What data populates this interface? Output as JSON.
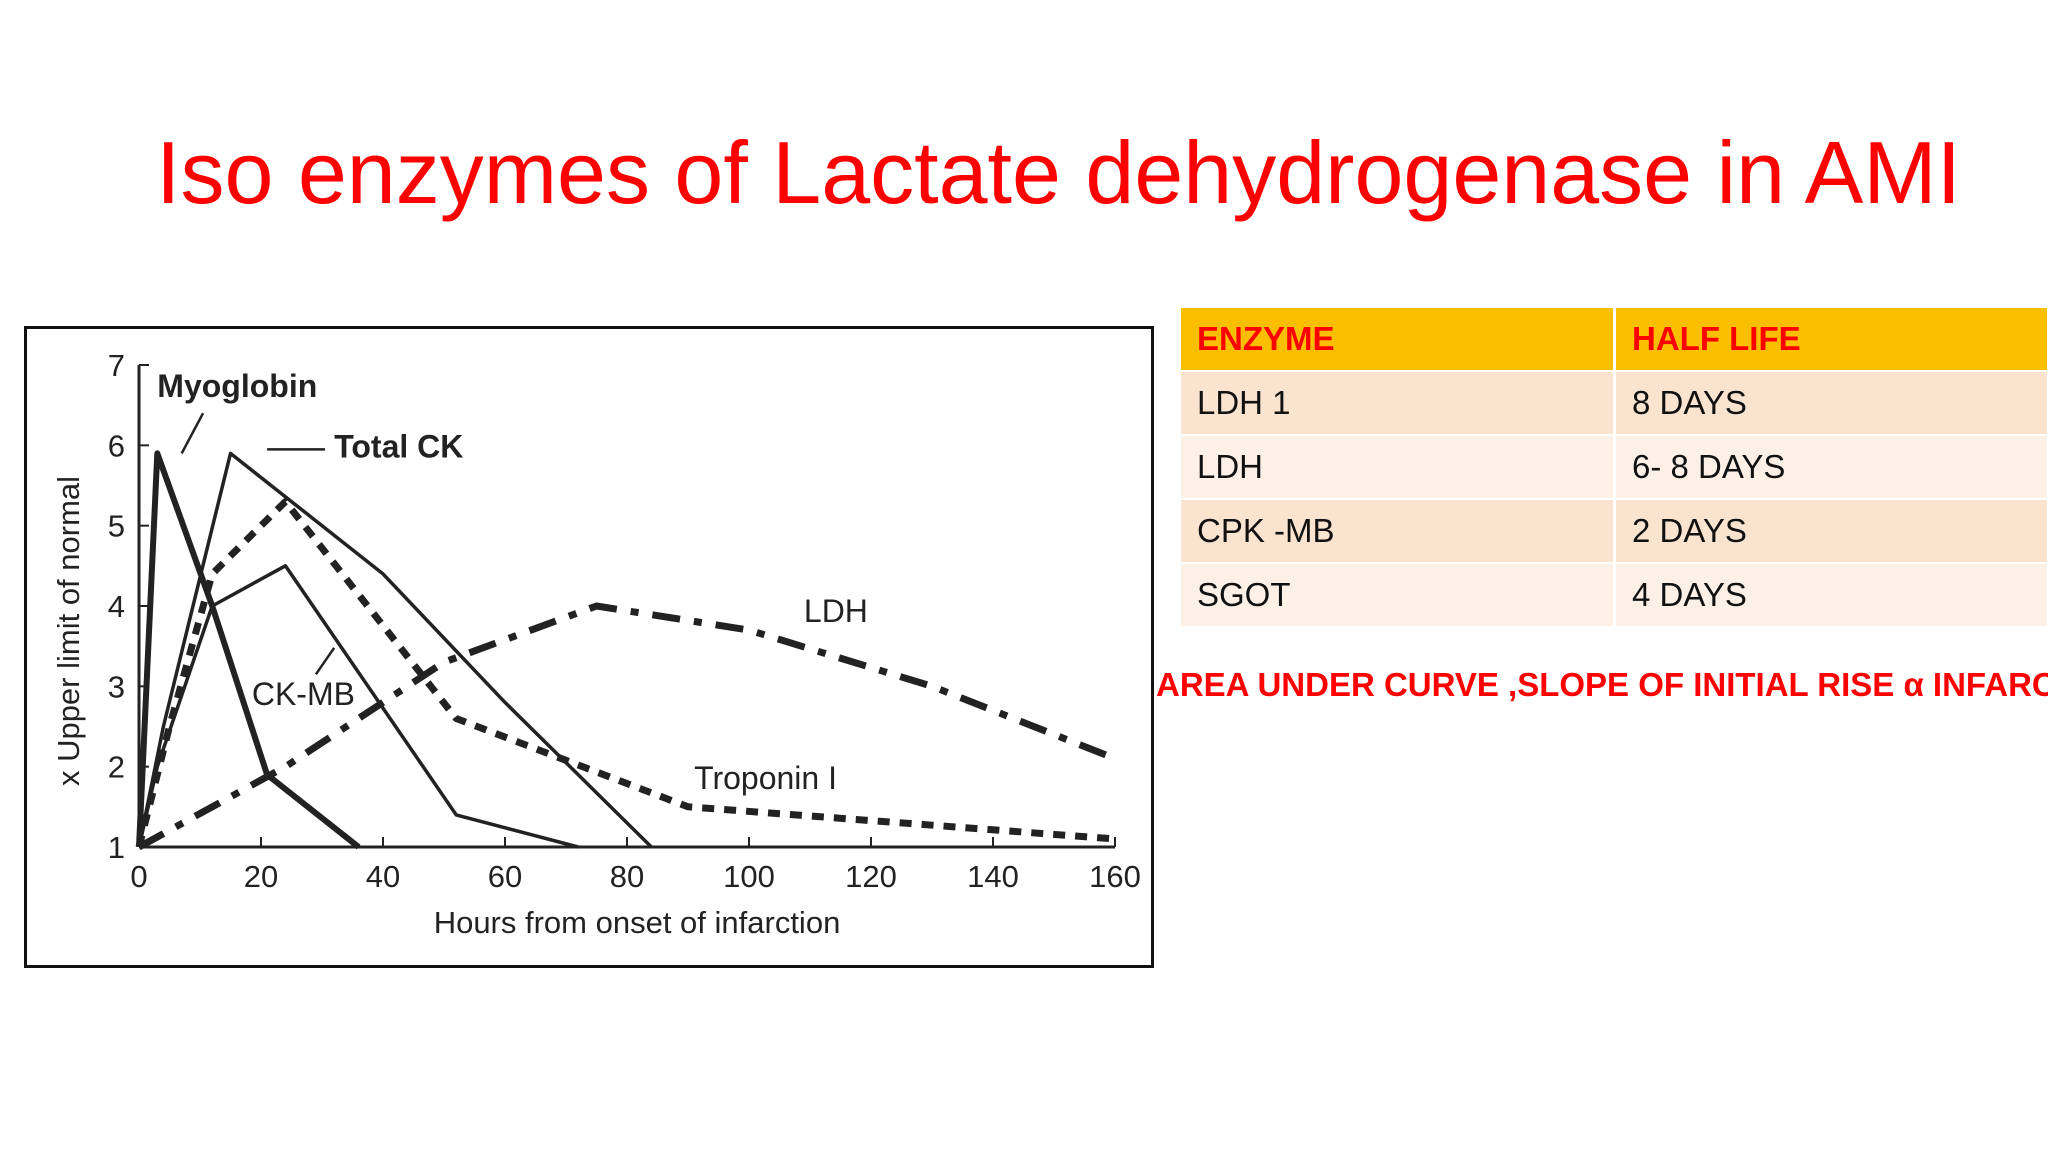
{
  "slide": {
    "title": "Iso enzymes of Lactate dehydrogenase in AMI",
    "note": "AREA UNDER CURVE ,SLOPE OF INITIAL RISE α INFARCT"
  },
  "table": {
    "headers": [
      "ENZYME",
      "HALF LIFE"
    ],
    "rows": [
      [
        "LDH 1",
        "8 DAYS"
      ],
      [
        "LDH",
        "6- 8 DAYS"
      ],
      [
        "CPK -MB",
        "2 DAYS"
      ],
      [
        "SGOT",
        "4 DAYS"
      ]
    ],
    "colors": {
      "header_bg": "#fbbf00",
      "header_text": "#ff0000",
      "row_odd": "#fae3cf",
      "row_even": "#fdf1e7"
    }
  },
  "chart_data": {
    "type": "line",
    "xlabel": "Hours from onset of infarction",
    "ylabel": "x Upper limit of normal",
    "xlim": [
      0,
      160
    ],
    "ylim": [
      1,
      7
    ],
    "x_ticks": [
      0,
      20,
      40,
      60,
      80,
      100,
      120,
      140,
      160
    ],
    "y_ticks": [
      1,
      2,
      3,
      4,
      5,
      6,
      7
    ],
    "grid": false,
    "series": [
      {
        "name": "Myoglobin",
        "style": "solid-thick",
        "points": [
          [
            0,
            1
          ],
          [
            3,
            5.9
          ],
          [
            12,
            4
          ],
          [
            21,
            1.9
          ],
          [
            36,
            1
          ]
        ]
      },
      {
        "name": "Total CK",
        "style": "solid",
        "points": [
          [
            0,
            1
          ],
          [
            4,
            2.5
          ],
          [
            15,
            5.9
          ],
          [
            40,
            4.4
          ],
          [
            60,
            2.8
          ],
          [
            84,
            1
          ]
        ]
      },
      {
        "name": "CK-MB",
        "style": "solid",
        "points": [
          [
            0,
            1
          ],
          [
            3,
            2
          ],
          [
            12,
            4
          ],
          [
            24,
            4.5
          ],
          [
            52,
            1.4
          ],
          [
            72,
            1
          ]
        ]
      },
      {
        "name": "Troponin I",
        "style": "dotted",
        "points": [
          [
            0,
            1
          ],
          [
            5,
            2.5
          ],
          [
            12,
            4.4
          ],
          [
            24,
            5.3
          ],
          [
            52,
            2.6
          ],
          [
            90,
            1.5
          ],
          [
            160,
            1.1
          ]
        ]
      },
      {
        "name": "LDH",
        "style": "dash-dot",
        "points": [
          [
            0,
            1
          ],
          [
            24,
            2
          ],
          [
            50,
            3.3
          ],
          [
            75,
            4
          ],
          [
            100,
            3.7
          ],
          [
            130,
            3.0
          ],
          [
            160,
            2.1
          ]
        ]
      }
    ],
    "annotations": [
      "Myoglobin",
      "Total CK",
      "CK-MB",
      "Troponin I",
      "LDH"
    ]
  }
}
